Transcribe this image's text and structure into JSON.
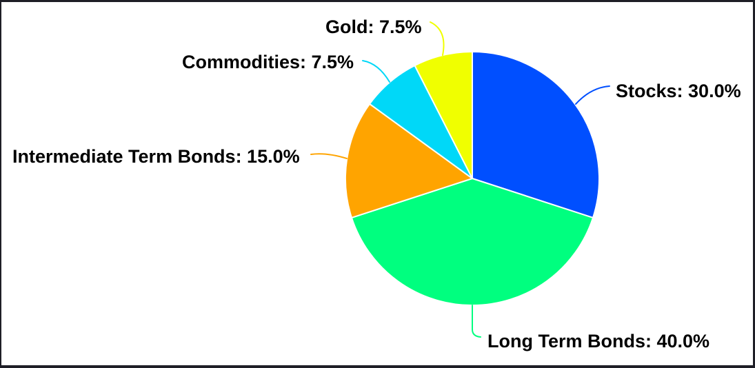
{
  "figure": {
    "background": "#ffffff",
    "border_color": "#1e1e26"
  },
  "chart_data": {
    "type": "pie",
    "title": "",
    "categories": [
      "Stocks",
      "Long Term Bonds",
      "Intermediate Term Bonds",
      "Commodities",
      "Gold"
    ],
    "values": [
      30.0,
      40.0,
      15.0,
      7.5,
      7.5
    ],
    "labels": [
      "Stocks: 30.0%",
      "Long Term Bonds: 40.0%",
      "Intermediate Term Bonds: 15.0%",
      "Commodities: 7.5%",
      "Gold: 7.5%"
    ],
    "colors": [
      "#004FFF",
      "#00FF7F",
      "#FFA400",
      "#00D8F8",
      "#F0FF00"
    ],
    "slice_border_color": "#ffffff",
    "start_angle_deg": 0,
    "direction": "clockwise",
    "legend": "none",
    "label_style": "external-with-leader-lines"
  }
}
